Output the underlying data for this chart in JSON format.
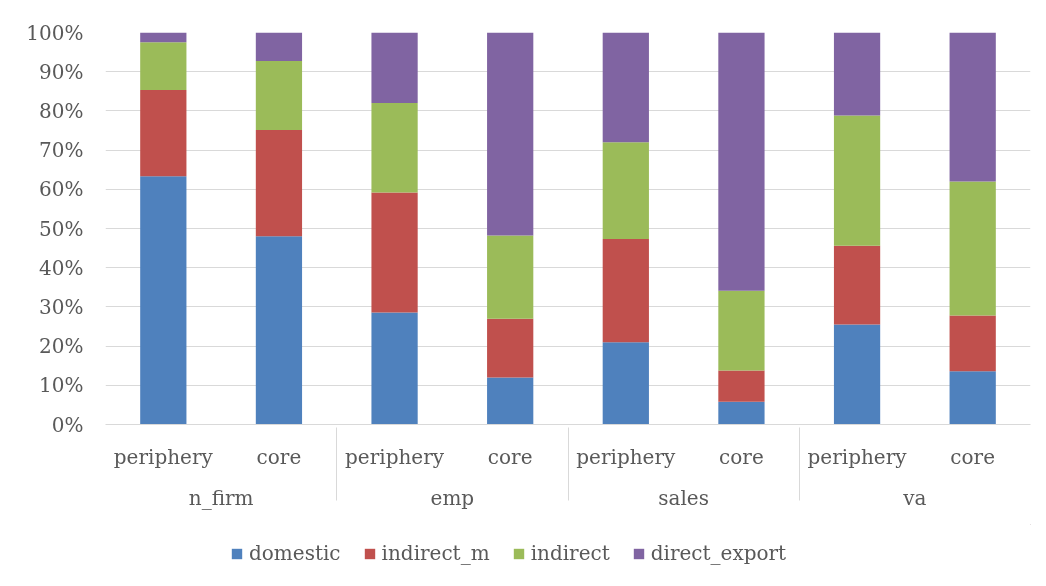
{
  "chart_data": {
    "type": "bar",
    "stacked": true,
    "categories": [
      "periphery",
      "core",
      "periphery",
      "core",
      "periphery",
      "core",
      "periphery",
      "core"
    ],
    "annotations": [
      "n_firm",
      "emp",
      "sales",
      "va"
    ],
    "series": [
      {
        "name": "domestic",
        "color": "#4f81bd",
        "values": [
          63.3,
          48.0,
          28.6,
          12.0,
          21.0,
          5.8,
          25.5,
          13.6
        ]
      },
      {
        "name": "indirect_m",
        "color": "#c0504d",
        "values": [
          22.0,
          27.1,
          30.6,
          15.0,
          26.3,
          8.0,
          20.1,
          14.2
        ]
      },
      {
        "name": "indirect",
        "color": "#9bbb59",
        "values": [
          12.2,
          17.6,
          22.8,
          21.2,
          24.7,
          20.3,
          33.2,
          34.2
        ]
      },
      {
        "name": "direct_export",
        "color": "#8064a2",
        "values": [
          2.5,
          7.3,
          18.0,
          51.8,
          28.0,
          65.9,
          21.2,
          38.0
        ]
      }
    ],
    "ylim": [
      0,
      100
    ],
    "yticks": [
      {
        "value": 0,
        "label": "0%"
      },
      {
        "value": 10,
        "label": "10%"
      },
      {
        "value": 20,
        "label": "20%"
      },
      {
        "value": 30,
        "label": "30%"
      },
      {
        "value": 40,
        "label": "40%"
      },
      {
        "value": 50,
        "label": "50%"
      },
      {
        "value": 60,
        "label": "60%"
      },
      {
        "value": 70,
        "label": "70%"
      },
      {
        "value": 80,
        "label": "80%"
      },
      {
        "value": 90,
        "label": "90%"
      },
      {
        "value": 100,
        "label": "100%"
      }
    ],
    "grid": "y",
    "legend": "bottom"
  }
}
